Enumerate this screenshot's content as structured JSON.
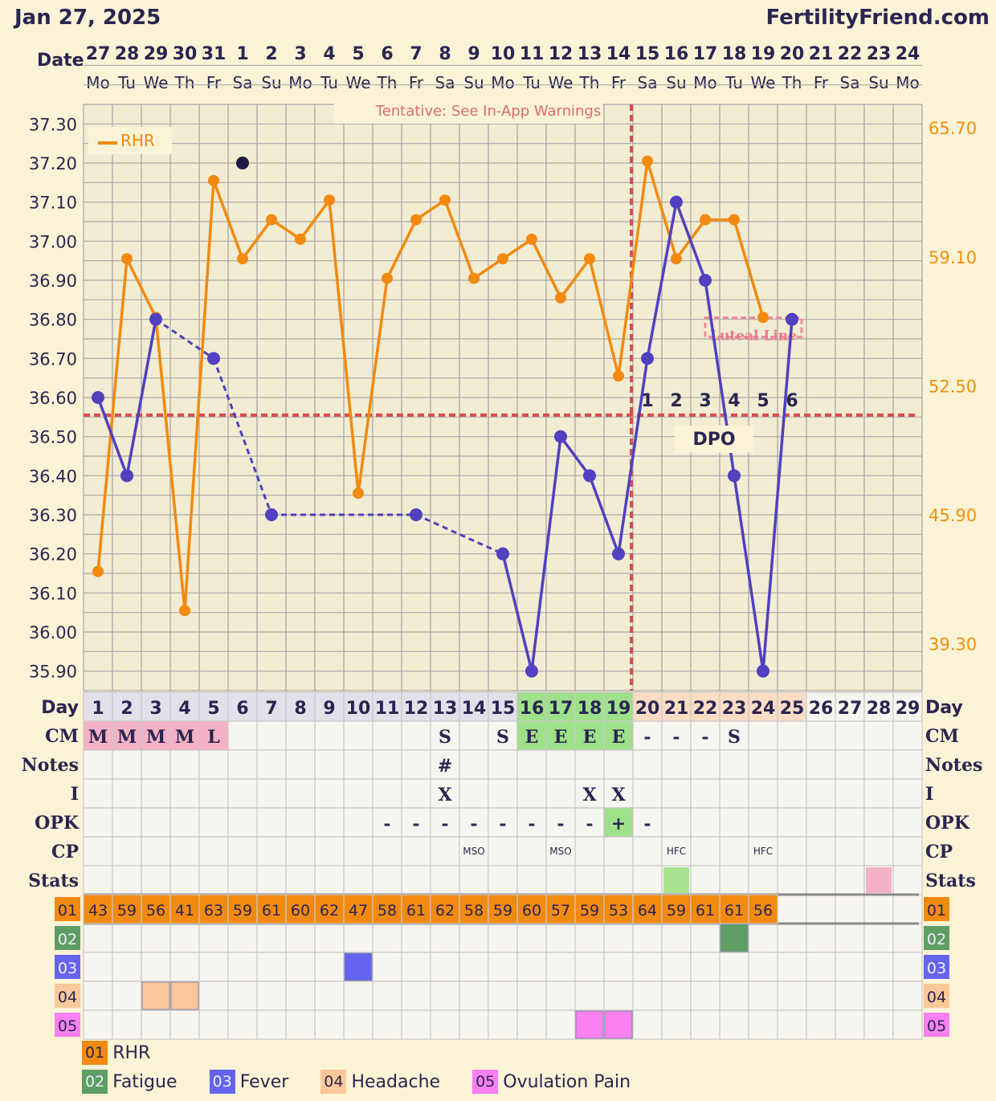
{
  "header": {
    "date": "Jan 27, 2025",
    "site": "FertilityFriend.com"
  },
  "labels": {
    "date": "Date",
    "day": "Day",
    "tentative": "Tentative: See In-App Warnings",
    "dpo": "DPO",
    "luteal": "Luteal Line",
    "rhr_legend": "RHR"
  },
  "colors": {
    "background": "#fbf3d6",
    "temp_line": "#5140c0",
    "rhr_line": "#f28a10",
    "coverline": "#d94c52",
    "grid": "#a8a8a8",
    "cm_m": "#f4b2c6",
    "fertile_green": "#9fe08a",
    "post_ov": "#fbdcc4",
    "early_cycle": "#e4e0ea"
  },
  "chart_data": {
    "type": "line",
    "dates": [
      "27",
      "28",
      "29",
      "30",
      "31",
      "1",
      "2",
      "3",
      "4",
      "5",
      "6",
      "7",
      "8",
      "9",
      "10",
      "11",
      "12",
      "13",
      "14",
      "15",
      "16",
      "17",
      "18",
      "19",
      "20",
      "21",
      "22",
      "23",
      "24"
    ],
    "weekdays": [
      "Mo",
      "Tu",
      "We",
      "Th",
      "Fr",
      "Sa",
      "Su",
      "Mo",
      "Tu",
      "We",
      "Th",
      "Fr",
      "Sa",
      "Su",
      "Mo",
      "Tu",
      "We",
      "Th",
      "Fr",
      "Sa",
      "Su",
      "Mo",
      "Tu",
      "We",
      "Th",
      "Fr",
      "Sa",
      "Su",
      "Mo"
    ],
    "cycle_days": [
      "1",
      "2",
      "3",
      "4",
      "5",
      "6",
      "7",
      "8",
      "9",
      "10",
      "11",
      "12",
      "13",
      "14",
      "15",
      "16",
      "17",
      "18",
      "19",
      "20",
      "21",
      "22",
      "23",
      "24",
      "25",
      "26",
      "27",
      "28",
      "29"
    ],
    "y_left_ticks": [
      "37.30",
      "37.20",
      "37.10",
      "37.00",
      "36.90",
      "36.80",
      "36.70",
      "36.60",
      "36.50",
      "36.40",
      "36.30",
      "36.20",
      "36.10",
      "36.00",
      "35.90"
    ],
    "y_right_ticks": [
      "65.70",
      "59.10",
      "52.50",
      "45.90",
      "39.30"
    ],
    "ylim_temp": [
      35.85,
      37.35
    ],
    "ylim_rhr": [
      36.9,
      66.9
    ],
    "temperature_series": {
      "name": "",
      "values": [
        36.6,
        36.4,
        36.8,
        null,
        36.7,
        null,
        36.3,
        null,
        null,
        null,
        null,
        36.3,
        null,
        null,
        36.2,
        35.9,
        36.5,
        36.4,
        36.2,
        36.7,
        37.1,
        36.9,
        36.4,
        35.9,
        36.8,
        null,
        null,
        null,
        null
      ],
      "dashed_segments": [
        [
          2,
          4
        ],
        [
          4,
          6
        ],
        [
          6,
          11
        ],
        [
          11,
          14
        ]
      ],
      "discarded": [
        {
          "day_index": 5,
          "value": 37.2
        }
      ]
    },
    "rhr_series": {
      "name": "RHR",
      "values": [
        43,
        59,
        56,
        41,
        63,
        59,
        61,
        60,
        62,
        47,
        58,
        61,
        62,
        58,
        59,
        60,
        57,
        59,
        53,
        64,
        59,
        61,
        61,
        56,
        null,
        null,
        null,
        null,
        null
      ]
    },
    "coverline_temp": 36.555,
    "ovulation_day_index": 18,
    "dpo_numbers": [
      "1",
      "2",
      "3",
      "4",
      "5",
      "6"
    ],
    "dpo_start_index": 19,
    "luteal_line_range": [
      21,
      24
    ]
  },
  "rows": {
    "cm": {
      "label": "CM",
      "values": [
        "M",
        "M",
        "M",
        "M",
        "L",
        "",
        "",
        "",
        "",
        "",
        "",
        "",
        "S",
        "",
        "S",
        "E",
        "E",
        "E",
        "E",
        "-",
        "-",
        "-",
        "S",
        "",
        "",
        "",
        "",
        "",
        ""
      ]
    },
    "notes": {
      "label": "Notes",
      "values": [
        "",
        "",
        "",
        "",
        "",
        "",
        "",
        "",
        "",
        "",
        "",
        "",
        "#",
        "",
        "",
        "",
        "",
        "",
        "",
        "",
        "",
        "",
        "",
        "",
        "",
        "",
        "",
        "",
        ""
      ]
    },
    "intercourse": {
      "label": "I",
      "values": [
        "",
        "",
        "",
        "",
        "",
        "",
        "",
        "",
        "",
        "",
        "",
        "",
        "X",
        "",
        "",
        "",
        "",
        "X",
        "X",
        "",
        "",
        "",
        "",
        "",
        "",
        "",
        "",
        "",
        ""
      ]
    },
    "opk": {
      "label": "OPK",
      "values": [
        "",
        "",
        "",
        "",
        "",
        "",
        "",
        "",
        "",
        "",
        "-",
        "-",
        "-",
        "-",
        "-",
        "-",
        "-",
        "-",
        "+",
        "-",
        "",
        "",
        "",
        "",
        "",
        "",
        "",
        "",
        ""
      ]
    },
    "cp": {
      "label": "CP",
      "values": [
        "",
        "",
        "",
        "",
        "",
        "",
        "",
        "",
        "",
        "",
        "",
        "",
        "",
        "MSO",
        "",
        "",
        "MSO",
        "",
        "",
        "",
        "HFC",
        "",
        "",
        "HFC",
        "",
        "",
        "",
        "",
        ""
      ]
    },
    "stats": {
      "label": "Stats"
    }
  },
  "symptoms": {
    "rows": [
      {
        "code": "01",
        "name": "RHR",
        "color": "#f28a10"
      },
      {
        "code": "02",
        "name": "Fatigue",
        "color": "#5e9e63"
      },
      {
        "code": "03",
        "name": "Fever",
        "color": "#6464f0"
      },
      {
        "code": "04",
        "name": "Headache",
        "color": "#fbc89a"
      },
      {
        "code": "05",
        "name": "Ovulation Pain",
        "color": "#f880f0"
      }
    ],
    "rhr_values": [
      "43",
      "59",
      "56",
      "41",
      "63",
      "59",
      "61",
      "60",
      "62",
      "47",
      "58",
      "61",
      "62",
      "58",
      "59",
      "60",
      "57",
      "59",
      "53",
      "64",
      "59",
      "61",
      "61",
      "56",
      "",
      "",
      "",
      "",
      ""
    ],
    "fatigue_days": [
      22
    ],
    "fever_days": [
      9
    ],
    "headache_days": [
      2,
      3
    ],
    "ovpain_days": [
      17,
      18
    ]
  }
}
